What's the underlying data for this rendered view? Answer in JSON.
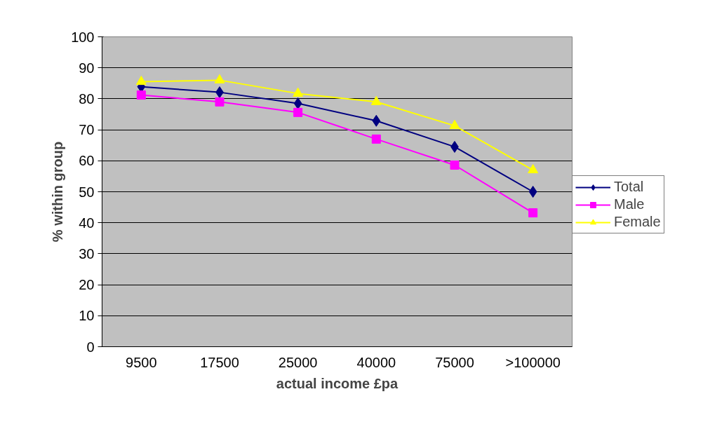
{
  "chart_data": {
    "type": "line",
    "xlabel": "actual income £pa",
    "ylabel": "% within group",
    "categories": [
      "9500",
      "17500",
      "25000",
      "40000",
      "75000",
      ">100000"
    ],
    "series": [
      {
        "name": "Total",
        "color": "#000080",
        "marker": "diamond",
        "values": [
          83.9,
          82.1,
          78.5,
          72.9,
          64.5,
          50.0
        ]
      },
      {
        "name": "Male",
        "color": "#ff00ff",
        "marker": "square",
        "values": [
          81.2,
          79.0,
          75.6,
          67.0,
          58.6,
          43.2
        ]
      },
      {
        "name": "Female",
        "color": "#ffff00",
        "marker": "triangle",
        "values": [
          85.5,
          86.0,
          81.7,
          79.0,
          71.3,
          57.0
        ]
      }
    ],
    "ylim": [
      0,
      100
    ],
    "yticks": [
      0,
      10,
      20,
      30,
      40,
      50,
      60,
      70,
      80,
      90,
      100
    ],
    "grid": "y",
    "legend": "right",
    "line_style": "solid"
  }
}
